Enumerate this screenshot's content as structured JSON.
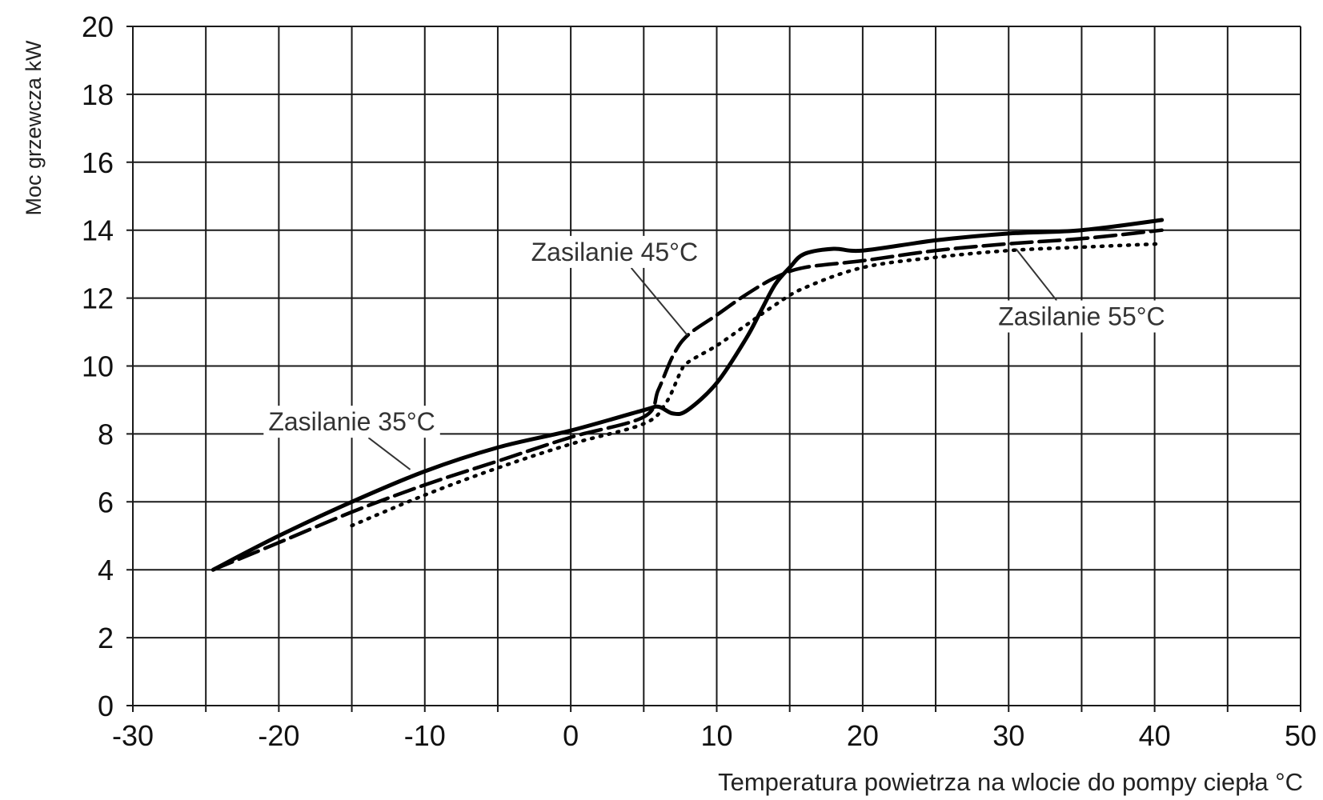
{
  "chart_data": {
    "type": "line",
    "xlabel": "Temperatura powietrza na wlocie do pompy ciepła °C",
    "ylabel": "Moc grzewcza kW",
    "xlim": [
      -30,
      50
    ],
    "ylim": [
      0,
      20
    ],
    "x_ticks": [
      "-30",
      "-20",
      "-10",
      "0",
      "10",
      "20",
      "30",
      "40",
      "50"
    ],
    "y_ticks": [
      "0",
      "2",
      "4",
      "6",
      "8",
      "10",
      "12",
      "14",
      "16",
      "18",
      "20"
    ],
    "grid": true,
    "series": [
      {
        "name": "Zasilanie 35°C",
        "style": "solid",
        "x": [
          -24.5,
          -20,
          -15,
          -10,
          -5,
          0,
          5,
          6,
          7,
          8,
          10,
          12,
          13,
          14,
          15,
          16,
          18,
          20,
          25,
          30,
          35,
          40.5
        ],
        "y": [
          4.0,
          5.0,
          6.0,
          6.9,
          7.6,
          8.1,
          8.7,
          8.8,
          8.6,
          8.7,
          9.5,
          10.8,
          11.6,
          12.4,
          12.9,
          13.3,
          13.45,
          13.4,
          13.7,
          13.9,
          14.0,
          14.3
        ]
      },
      {
        "name": "Zasilanie 45°C",
        "style": "dashed",
        "x": [
          -24.5,
          -20,
          -15,
          -10,
          -5,
          0,
          5,
          6,
          7,
          8,
          10,
          12,
          14,
          16,
          20,
          25,
          30,
          35,
          40.5
        ],
        "y": [
          4.0,
          4.8,
          5.7,
          6.5,
          7.2,
          7.9,
          8.5,
          9.3,
          10.3,
          10.9,
          11.5,
          12.1,
          12.6,
          12.9,
          13.1,
          13.4,
          13.6,
          13.75,
          14.0
        ]
      },
      {
        "name": "Zasilanie 55°C",
        "style": "dotted",
        "x": [
          -15,
          -10,
          -5,
          0,
          5,
          6.5,
          7.5,
          8,
          10,
          12,
          14,
          16,
          20,
          25,
          30,
          35,
          40.5
        ],
        "y": [
          5.3,
          6.2,
          7.0,
          7.7,
          8.3,
          8.9,
          9.8,
          10.1,
          10.6,
          11.2,
          11.8,
          12.3,
          12.9,
          13.2,
          13.4,
          13.5,
          13.6
        ]
      }
    ],
    "annotations": [
      {
        "text": "Zasilanie 35°C",
        "series": "Zasilanie 35°C",
        "text_xy": [
          -15,
          8.1
        ],
        "point_xy": [
          -11,
          6.95
        ]
      },
      {
        "text": "Zasilanie 45°C",
        "series": "Zasilanie 45°C",
        "text_xy": [
          3,
          13.1
        ],
        "point_xy": [
          8,
          10.9
        ]
      },
      {
        "text": "Zasilanie 55°C",
        "series": "Zasilanie 55°C",
        "text_xy": [
          35,
          11.2
        ],
        "point_xy": [
          30.5,
          13.45
        ]
      }
    ]
  }
}
